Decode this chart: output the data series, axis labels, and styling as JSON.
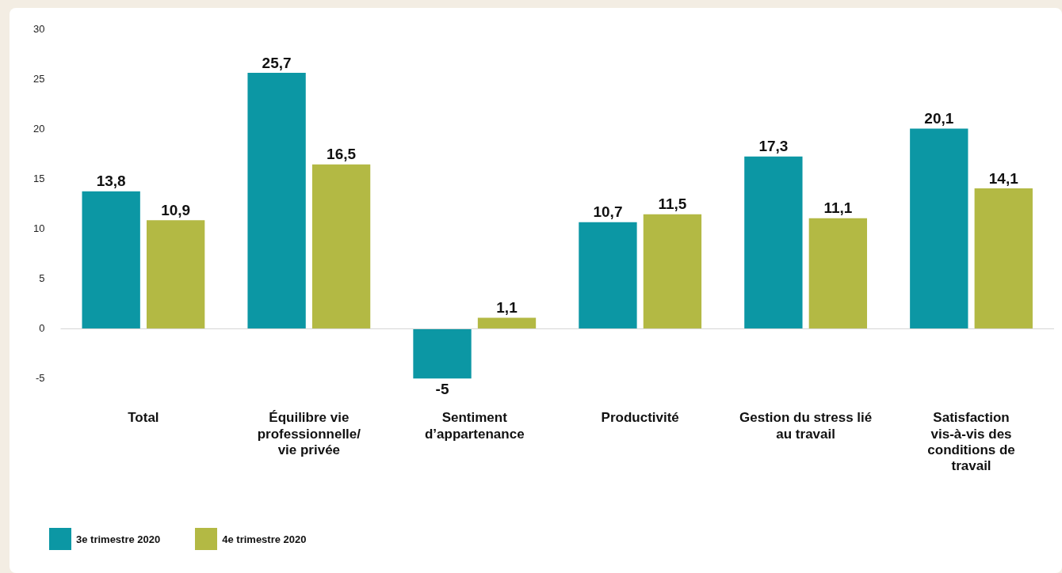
{
  "chart_data": {
    "type": "bar",
    "categories": [
      "Total",
      "Équilibre vie\nprofessionnelle/\nvie privée",
      "Sentiment\nd’appartenance",
      "Productivité",
      "Gestion du stress lié\nau travail",
      "Satisfaction\nvis-à-vis des\nconditions de\ntravail"
    ],
    "series": [
      {
        "name": "3e trimestre 2020",
        "color": "#0c97a4",
        "values": [
          13.8,
          25.7,
          -5,
          10.7,
          17.3,
          20.1
        ],
        "value_labels": [
          "13,8",
          "25,7",
          "-5",
          "10,7",
          "17,3",
          "20,1"
        ]
      },
      {
        "name": "4e trimestre 2020",
        "color": "#b3b944",
        "values": [
          10.9,
          16.5,
          1.1,
          11.5,
          11.1,
          14.1
        ],
        "value_labels": [
          "10,9",
          "16,5",
          "1,1",
          "11,5",
          "11,1",
          "14,1"
        ]
      }
    ],
    "ylim": [
      -5,
      30
    ],
    "yticks": [
      -5,
      0,
      5,
      10,
      15,
      20,
      25,
      30
    ],
    "ref_lines": [
      {
        "axis": "y",
        "value": 0,
        "color": "#d6d6d6"
      }
    ],
    "legend": "bottom left"
  }
}
